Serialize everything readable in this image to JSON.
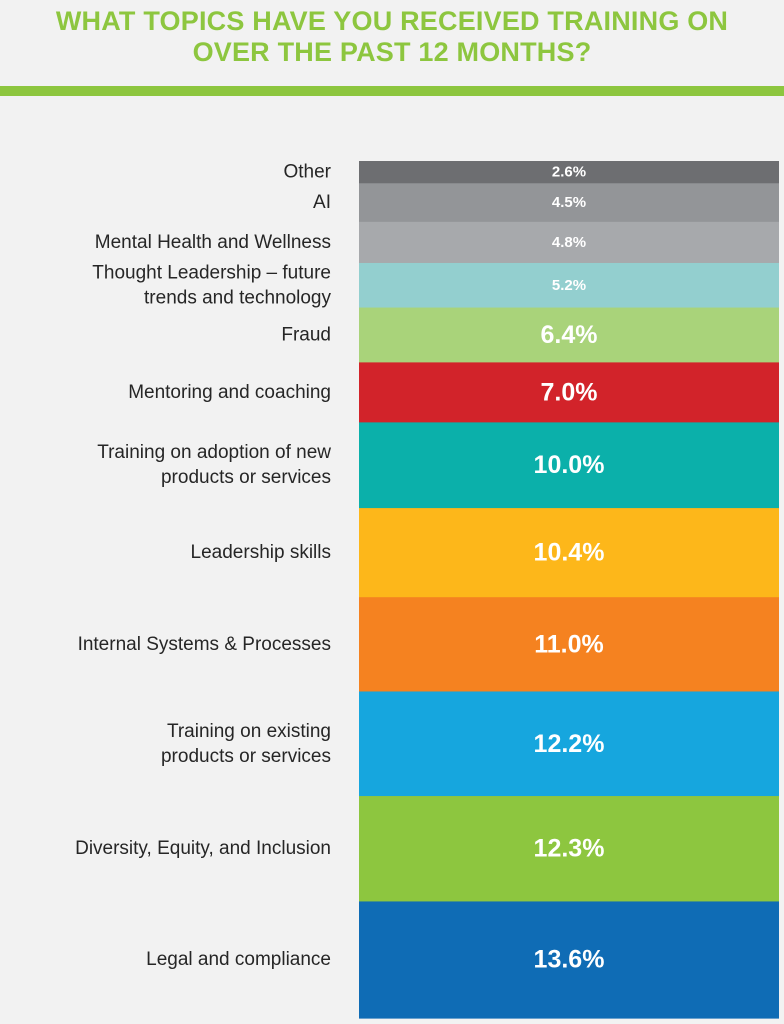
{
  "chart_data": {
    "type": "bar",
    "orientation": "stacked-vertical",
    "title_lines": [
      "WHAT TOPICS HAVE YOU RECEIVED TRAINING ON",
      "OVER THE PAST 12 MONTHS?"
    ],
    "unit": "%",
    "categories": [
      "Other",
      "AI",
      "Mental Health and Wellness",
      "Thought Leadership – future trends and technology",
      "Fraud",
      "Mentoring and coaching",
      "Training on adoption of new products or services",
      "Leadership skills",
      "Internal Systems & Processes",
      "Training on existing products or services",
      "Diversity, Equity, and Inclusion",
      "Legal and compliance"
    ],
    "label_lines": [
      [
        "Other"
      ],
      [
        "AI"
      ],
      [
        "Mental Health and Wellness"
      ],
      [
        "Thought Leadership – future",
        "trends and technology"
      ],
      [
        "Fraud"
      ],
      [
        "Mentoring and coaching"
      ],
      [
        "Training on adoption of new",
        "products or services"
      ],
      [
        "Leadership skills"
      ],
      [
        "Internal Systems & Processes"
      ],
      [
        "Training on existing",
        "products or services"
      ],
      [
        "Diversity, Equity, and Inclusion"
      ],
      [
        "Legal and compliance"
      ]
    ],
    "values": [
      2.6,
      4.5,
      4.8,
      5.2,
      6.4,
      7.0,
      10.0,
      10.4,
      11.0,
      12.2,
      12.3,
      13.6
    ],
    "value_labels": [
      "2.6%",
      "4.5%",
      "4.8%",
      "5.2%",
      "6.4%",
      "7.0%",
      "10.0%",
      "10.4%",
      "11.0%",
      "12.2%",
      "12.3%",
      "13.6%"
    ],
    "colors": [
      "#6d6e71",
      "#939598",
      "#a7a9ac",
      "#93cfcf",
      "#a9d37a",
      "#d2232a",
      "#0bb0aa",
      "#fdb71a",
      "#f58220",
      "#16a6de",
      "#8dc63f",
      "#0f6cb5"
    ]
  }
}
